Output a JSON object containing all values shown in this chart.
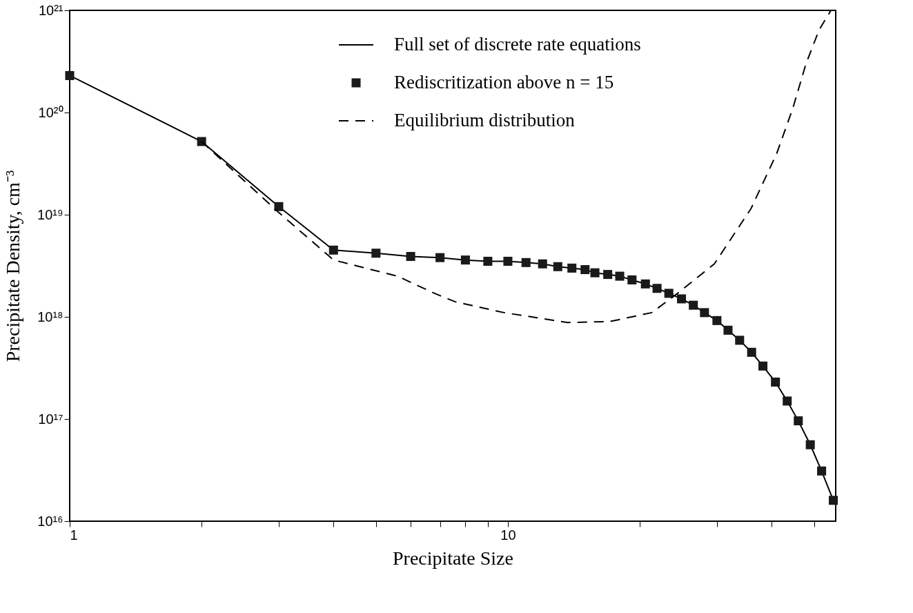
{
  "chart_data": {
    "type": "line",
    "xlabel": "Precipitate Size",
    "ylabel": "Precipitate Density, cm⁻³",
    "log": "xy",
    "grid": false,
    "legend": "top right",
    "xlim": [
      1,
      56
    ],
    "xticks": [
      1,
      {
        "value": 2,
        "label": null
      },
      {
        "value": 3,
        "label": null
      },
      {
        "value": 4,
        "label": null
      },
      {
        "value": 5,
        "label": null
      },
      {
        "value": 6,
        "label": null
      },
      {
        "value": 7,
        "label": null
      },
      {
        "value": 8,
        "label": null
      },
      {
        "value": 9,
        "label": null
      },
      10,
      {
        "value": 20,
        "label": null
      },
      {
        "value": 30,
        "label": null
      },
      {
        "value": 40,
        "label": null
      },
      {
        "value": 50,
        "label": null
      }
    ],
    "ylim": [
      1e+16,
      1e+21
    ],
    "yticks": [
      {
        "value": 1e+16,
        "label": "10¹⁶"
      },
      {
        "value": 1e+17,
        "label": "10¹⁷"
      },
      {
        "value": 1e+18,
        "label": "10¹⁸"
      },
      {
        "value": 1e+19,
        "label": "10¹⁹"
      },
      {
        "value": 1e+20,
        "label": "10²⁰"
      },
      {
        "value": 1e+21,
        "label": "10²¹"
      }
    ],
    "series": [
      {
        "name": "Full set of discrete rate equations",
        "type": "line",
        "line_style": "solid",
        "marker": "none",
        "color": "#000000",
        "x": [
          1,
          2,
          3,
          4,
          5,
          6,
          7,
          8,
          9,
          10,
          11,
          12,
          13,
          14,
          15,
          15.8,
          16.9,
          18.0,
          19.2,
          20.6,
          21.9,
          23.3,
          24.9,
          26.5,
          28.1,
          30.0,
          31.8,
          33.8,
          36.0,
          38.2,
          40.8,
          43.4,
          46.0,
          49.0,
          52.0,
          55.3
        ],
        "values": [
          2.3e+20,
          5.2e+19,
          1.2e+19,
          4.5e+18,
          4.2e+18,
          3.9e+18,
          3.8e+18,
          3.6e+18,
          3.5e+18,
          3.5e+18,
          3.4e+18,
          3.3e+18,
          3.1e+18,
          3e+18,
          2.9e+18,
          2.7e+18,
          2.6e+18,
          2.5e+18,
          2.3e+18,
          2.1e+18,
          1.9e+18,
          1.7e+18,
          1.5e+18,
          1.3e+18,
          1.1e+18,
          9.2e+17,
          7.4e+17,
          5.9e+17,
          4.5e+17,
          3.3e+17,
          2.3e+17,
          1.5e+17,
          9.6e+16,
          5.6e+16,
          3.1e+16,
          1.6e+16
        ]
      },
      {
        "name": "Rediscritization above n = 15",
        "type": "scatter",
        "marker": "square",
        "color": "#1a1a1a",
        "x": [
          1,
          2,
          3,
          4,
          5,
          6,
          7,
          8,
          9,
          10,
          11,
          12,
          13,
          14,
          15,
          15.8,
          16.9,
          18.0,
          19.2,
          20.6,
          21.9,
          23.3,
          24.9,
          26.5,
          28.1,
          30.0,
          31.8,
          33.8,
          36.0,
          38.2,
          40.8,
          43.4,
          46.0,
          49.0,
          52.0,
          55.3
        ],
        "values": [
          2.3e+20,
          5.2e+19,
          1.2e+19,
          4.5e+18,
          4.2e+18,
          3.9e+18,
          3.8e+18,
          3.6e+18,
          3.5e+18,
          3.5e+18,
          3.4e+18,
          3.3e+18,
          3.1e+18,
          3e+18,
          2.9e+18,
          2.7e+18,
          2.6e+18,
          2.5e+18,
          2.3e+18,
          2.1e+18,
          1.9e+18,
          1.7e+18,
          1.5e+18,
          1.3e+18,
          1.1e+18,
          9.2e+17,
          7.4e+17,
          5.9e+17,
          4.5e+17,
          3.3e+17,
          2.3e+17,
          1.5e+17,
          9.6e+16,
          5.6e+16,
          3.1e+16,
          1.6e+16
        ]
      },
      {
        "name": "Equilibrium distribution",
        "type": "line",
        "line_style": "dashed",
        "marker": "none",
        "color": "#000000",
        "x": [
          2,
          3,
          4,
          5.6,
          6.8,
          7.6,
          9.8,
          13.7,
          17.1,
          21.3,
          24.4,
          29.6,
          35.9,
          41.1,
          44.7,
          47.9,
          51.3,
          54.6
        ],
        "values": [
          5.2e+19,
          1.05e+19,
          3.6e+18,
          2.5e+18,
          1.7e+18,
          1.4e+18,
          1.1e+18,
          8.8e+17,
          9e+17,
          1.1e+18,
          1.7e+18,
          3.3e+18,
          1.15e+19,
          4e+19,
          1.1e+20,
          3e+20,
          6.4e+20,
          1e+21
        ]
      }
    ]
  }
}
